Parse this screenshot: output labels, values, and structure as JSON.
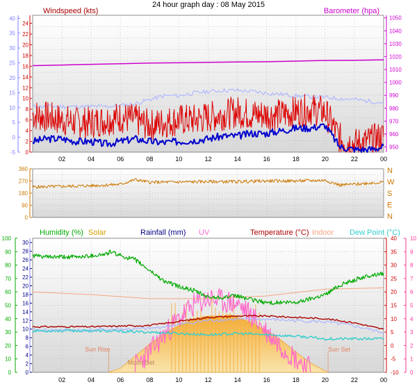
{
  "title": "24 hour graph day : 08 May 2015",
  "x_ticks": [
    "02",
    "04",
    "06",
    "08",
    "10",
    "12",
    "14",
    "16",
    "18",
    "20",
    "22",
    "00"
  ],
  "colors": {
    "wind": "#dd0000",
    "wind_avg": "#0000cc",
    "baro": "#cc00cc",
    "gust_ghost": "#b0b8ff",
    "dir": "#cc7700",
    "humidity": "#00aa00",
    "solar": "#f5a623",
    "rain": "#000080",
    "uv": "#ff66cc",
    "temperature": "#aa0000",
    "indoor": "#f4a582",
    "dewpoint": "#33cccc",
    "left_axis_blue": "#8080ff",
    "left_axis_red": "#cc0000",
    "right_axis_magenta": "#cc00cc",
    "left_axis_green": "#00aa00",
    "right_axis_pink": "#ff3399"
  },
  "chart_data": [
    {
      "type": "line",
      "panel": "wind-baro",
      "labels": {
        "left": "Windspeed (kts)",
        "right": "Barometer (hpa)"
      },
      "left_ticks_red": [
        "0",
        "2",
        "4",
        "6",
        "8",
        "10",
        "12",
        "14",
        "16",
        "18",
        "20",
        "22",
        "24"
      ],
      "left_ticks_blue": [
        "-5",
        "0",
        "5",
        "10",
        "15",
        "20",
        "25",
        "30",
        "35",
        "40"
      ],
      "right_ticks": [
        "950",
        "960",
        "970",
        "980",
        "990",
        "1000",
        "1010",
        "1020",
        "1030",
        "1040",
        "1050"
      ],
      "ylim_kts": [
        0,
        25.5
      ],
      "ylim_hpa": [
        946,
        1052
      ],
      "series": [
        {
          "key": "baro",
          "axis": "hpa",
          "x": [
            0,
            2,
            4,
            6,
            8,
            10,
            12,
            14,
            16,
            18,
            20,
            22,
            24
          ],
          "values": [
            1013,
            1013.5,
            1014,
            1014.5,
            1015,
            1015.2,
            1015.5,
            1015.8,
            1016,
            1016.5,
            1017,
            1017.2,
            1017.5
          ]
        },
        {
          "key": "ghost",
          "axis": "kts",
          "x": [
            0,
            2,
            4,
            5,
            6,
            7,
            8,
            9,
            10,
            11,
            12,
            13,
            14,
            15,
            16,
            17,
            18,
            19,
            20,
            21,
            22,
            23,
            24
          ],
          "values": [
            8.5,
            8.5,
            8.5,
            8.5,
            8.7,
            9,
            9.8,
            10.5,
            10.5,
            11,
            11.3,
            11.5,
            11.5,
            11.3,
            11,
            10.8,
            10.5,
            10.3,
            10.2,
            10,
            9.8,
            9.5,
            9.2
          ]
        },
        {
          "key": "wind",
          "axis": "kts",
          "x": [
            0,
            1,
            2,
            3,
            4,
            5,
            6,
            7,
            8,
            9,
            10,
            11,
            12,
            13,
            14,
            15,
            16,
            17,
            18,
            19,
            20,
            21,
            22,
            23,
            24
          ],
          "values": [
            7,
            6.5,
            6,
            5.5,
            5.5,
            6,
            6.5,
            6,
            5,
            5.5,
            6,
            6,
            6.5,
            7,
            7.5,
            7,
            7,
            7,
            7.5,
            8,
            7.5,
            2.5,
            1.5,
            2,
            3
          ]
        },
        {
          "key": "wind_avg",
          "axis": "kts",
          "x": [
            0,
            1,
            2,
            3,
            4,
            5,
            6,
            7,
            8,
            9,
            10,
            11,
            12,
            13,
            14,
            15,
            16,
            17,
            18,
            19,
            20,
            21,
            22,
            23,
            24
          ],
          "values": [
            2,
            2.5,
            2.5,
            2,
            2,
            1.5,
            2,
            2.5,
            2,
            1.8,
            2,
            2.2,
            2.5,
            3,
            3,
            3.5,
            3.5,
            4,
            4.5,
            4.5,
            5,
            1,
            0.5,
            0.5,
            1
          ]
        }
      ]
    },
    {
      "type": "line",
      "panel": "wind-direction",
      "left_ticks": [
        "0",
        "90",
        "180",
        "270",
        "360"
      ],
      "right_ticks": [
        "N",
        "W",
        "S",
        "E",
        "N"
      ],
      "ylim": [
        0,
        360
      ],
      "series": [
        {
          "key": "dir",
          "x": [
            0,
            2,
            4,
            6,
            7,
            8,
            10,
            12,
            14,
            16,
            18,
            20,
            21,
            22,
            23,
            24
          ],
          "values": [
            225,
            230,
            235,
            245,
            280,
            260,
            262,
            265,
            265,
            270,
            270,
            275,
            240,
            245,
            255,
            260
          ]
        }
      ]
    },
    {
      "type": "line",
      "panel": "multi",
      "labels": {
        "humidity": "Humidity (%)",
        "solar": "Solar",
        "rainfall": "Rainfall (mm)",
        "uv": "UV",
        "temperature": "Temperature (°C)",
        "indoor": "Indoor",
        "dewpoint": "Dew Point (°C)",
        "sunrise": "Sun Rise",
        "sunset": "Sun Set",
        "moonset": "Moon Set"
      },
      "left_ticks_green": [
        "0",
        "10",
        "20",
        "30",
        "40",
        "50",
        "60",
        "70",
        "80",
        "90",
        "100"
      ],
      "left_ticks_blue": [
        "0",
        "2",
        "4",
        "6",
        "8",
        "10",
        "12",
        "14",
        "16",
        "18",
        "20",
        "22",
        "24",
        "26",
        "28",
        "30"
      ],
      "right_ticks_red": [
        "-10",
        "-5",
        "0",
        "5",
        "10",
        "15",
        "20",
        "25",
        "30",
        "35",
        "40"
      ],
      "right_ticks_pink": [
        "0",
        "1",
        "2",
        "3",
        "4",
        "5",
        "6",
        "7",
        "8",
        "9",
        "10"
      ],
      "ylim_humidity": [
        0,
        100
      ],
      "ylim_temp": [
        -10,
        40
      ],
      "sunrise_hour": 5.2,
      "sunset_hour": 20.2,
      "moonset_hour": 7.5,
      "series": [
        {
          "key": "humidity",
          "x": [
            0,
            1,
            2,
            3,
            4,
            5,
            5.3,
            6,
            7,
            8,
            9,
            10,
            11,
            12,
            13,
            14,
            15,
            16,
            17,
            18,
            19,
            20,
            21,
            22,
            23,
            24
          ],
          "values": [
            87,
            86,
            86,
            86,
            87,
            88,
            90,
            87,
            84,
            76,
            68,
            64,
            61,
            56,
            56,
            57,
            54,
            52,
            52,
            52,
            55,
            58,
            65,
            69,
            72,
            74
          ]
        },
        {
          "key": "indoor",
          "x": [
            0,
            4,
            8,
            12,
            16,
            20,
            24
          ],
          "values": [
            20,
            19,
            17.5,
            17.5,
            18.5,
            21,
            21.5
          ]
        },
        {
          "key": "temperature",
          "x": [
            0,
            4,
            8,
            10,
            12,
            14,
            16,
            18,
            20,
            22,
            24
          ],
          "values": [
            7,
            7,
            7.5,
            9,
            10.5,
            11,
            11,
            10.5,
            10,
            8.5,
            6
          ]
        },
        {
          "key": "dewpoint",
          "x": [
            0,
            4,
            8,
            10,
            12,
            14,
            16,
            18,
            20,
            22,
            24
          ],
          "values": [
            5.5,
            5.5,
            5,
            4.5,
            4,
            4.5,
            4,
            3.5,
            2.5,
            2.5,
            2.5
          ]
        },
        {
          "key": "solar",
          "x": [
            5.2,
            6,
            7,
            8,
            9,
            10,
            11,
            12,
            13,
            13.5,
            14,
            15,
            16,
            17,
            18,
            19,
            20,
            20.2
          ],
          "values": [
            0,
            3,
            12,
            21,
            29,
            35,
            40,
            42,
            42,
            43,
            41,
            37,
            31,
            24,
            15,
            7,
            1,
            0
          ]
        },
        {
          "key": "uv",
          "x": [
            7,
            8,
            9,
            10,
            11,
            12,
            13,
            14,
            15,
            16,
            17,
            18,
            19
          ],
          "values": [
            0.5,
            1.5,
            2.8,
            4,
            5,
            5.5,
            5.3,
            5.1,
            4.2,
            3,
            2,
            1,
            0.3
          ]
        }
      ]
    }
  ]
}
